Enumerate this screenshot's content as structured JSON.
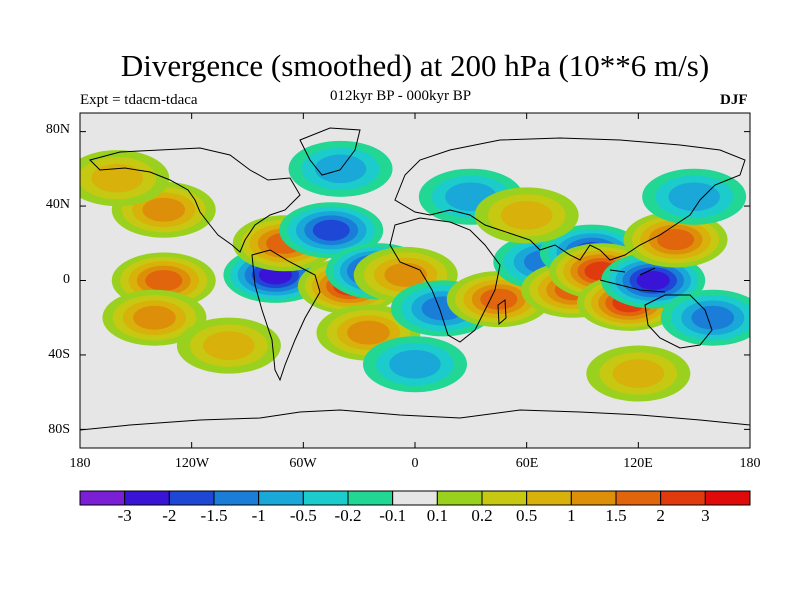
{
  "title": "Divergence (smoothed) at 200 hPa (10**6 m/s)",
  "subtitle": "012kyr BP - 000kyr BP",
  "left_label": "Expt = tdacm-tdaca",
  "right_label": "DJF",
  "axes": {
    "y_labels": [
      "80N",
      "40N",
      "0",
      "40S",
      "80S"
    ],
    "x_labels": [
      "180",
      "120W",
      "60W",
      "0",
      "60E",
      "120E",
      "180"
    ]
  },
  "colorbar": {
    "labels": [
      "-3",
      "-2",
      "-1.5",
      "-1",
      "-0.5",
      "-0.2",
      "-0.1",
      "0.1",
      "0.2",
      "0.5",
      "1",
      "1.5",
      "2",
      "3"
    ],
    "colors": [
      "#7b1fd6",
      "#3a14d6",
      "#1f47d6",
      "#1a7ed8",
      "#19a8d8",
      "#1ccccc",
      "#22d694",
      "#e6e6e6",
      "#9ad11e",
      "#c6c812",
      "#d8b10a",
      "#dd8f0a",
      "#e0650d",
      "#e03a0f",
      "#e00a0a"
    ]
  },
  "chart_data": {
    "type": "heatmap",
    "title": "Divergence (smoothed) at 200 hPa (10**6 m/s)",
    "subtitle": "012kyr BP - 000kyr BP",
    "experiment": "tdacm-tdaca",
    "season": "DJF",
    "xlim": [
      -180,
      180
    ],
    "ylim": [
      -90,
      90
    ],
    "levels": [
      -3,
      -2,
      -1.5,
      -1,
      -0.5,
      -0.2,
      -0.1,
      0.1,
      0.2,
      0.5,
      1,
      1.5,
      2,
      3
    ],
    "blobs": [
      {
        "lon": -135,
        "lat": 0,
        "value": 1.5
      },
      {
        "lon": -135,
        "lat": 38,
        "value": 1.2
      },
      {
        "lon": -140,
        "lat": -20,
        "value": 1.4
      },
      {
        "lon": -75,
        "lat": 3,
        "value": -2.3
      },
      {
        "lon": -70,
        "lat": 20,
        "value": 1.6
      },
      {
        "lon": -45,
        "lat": 27,
        "value": -1.8
      },
      {
        "lon": -35,
        "lat": -3,
        "value": 2.1
      },
      {
        "lon": -20,
        "lat": 5,
        "value": -2.4
      },
      {
        "lon": -5,
        "lat": 3,
        "value": 1.3
      },
      {
        "lon": -25,
        "lat": -28,
        "value": 1.0
      },
      {
        "lon": 15,
        "lat": -15,
        "value": -1.0
      },
      {
        "lon": 45,
        "lat": -10,
        "value": 1.5
      },
      {
        "lon": 70,
        "lat": 10,
        "value": -1.3
      },
      {
        "lon": 85,
        "lat": -5,
        "value": 1.6
      },
      {
        "lon": 95,
        "lat": 15,
        "value": -1.8
      },
      {
        "lon": 100,
        "lat": 5,
        "value": 2.0
      },
      {
        "lon": 115,
        "lat": -12,
        "value": 2.4
      },
      {
        "lon": 128,
        "lat": 0,
        "value": -2.6
      },
      {
        "lon": 140,
        "lat": 22,
        "value": 1.5
      },
      {
        "lon": 160,
        "lat": -20,
        "value": -1.1
      },
      {
        "lon": -160,
        "lat": 55,
        "value": 0.6
      },
      {
        "lon": 30,
        "lat": 45,
        "value": -0.8
      },
      {
        "lon": 60,
        "lat": 35,
        "value": 0.7
      },
      {
        "lon": -100,
        "lat": -35,
        "value": 0.8
      },
      {
        "lon": 0,
        "lat": -45,
        "value": -0.6
      },
      {
        "lon": 120,
        "lat": -50,
        "value": 0.5
      },
      {
        "lon": -40,
        "lat": 60,
        "value": -0.6
      },
      {
        "lon": 150,
        "lat": 45,
        "value": -0.7
      }
    ]
  }
}
